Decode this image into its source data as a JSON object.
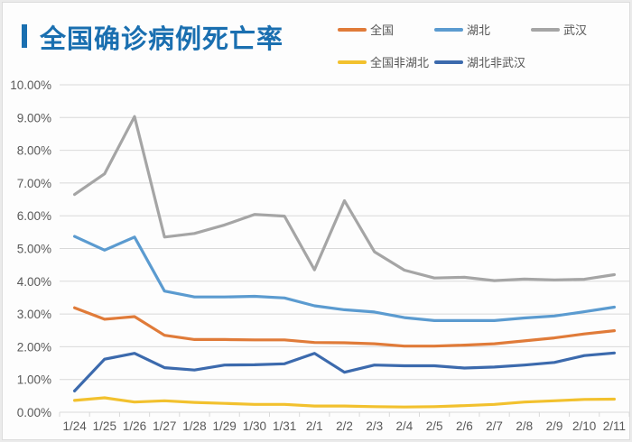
{
  "chart_data": {
    "type": "line",
    "title": "全国确诊病例死亡率",
    "xlabel": "",
    "ylabel": "",
    "x": [
      "1/24",
      "1/25",
      "1/26",
      "1/27",
      "1/28",
      "1/29",
      "1/30",
      "1/31",
      "2/1",
      "2/2",
      "2/3",
      "2/4",
      "2/5",
      "2/6",
      "2/7",
      "2/8",
      "2/9",
      "2/10",
      "2/11"
    ],
    "ylim": [
      0,
      10
    ],
    "yticks": [
      0,
      1,
      2,
      3,
      4,
      5,
      6,
      7,
      8,
      9,
      10
    ],
    "ytick_labels": [
      "0.00%",
      "1.00%",
      "2.00%",
      "3.00%",
      "4.00%",
      "5.00%",
      "6.00%",
      "7.00%",
      "8.00%",
      "9.00%",
      "10.00%"
    ],
    "y_unit": "%",
    "grid": true,
    "legend_position": "top-right",
    "series": [
      {
        "name": "全国",
        "color": "#e07b39",
        "values": [
          3.19,
          2.84,
          2.92,
          2.35,
          2.22,
          2.22,
          2.21,
          2.21,
          2.13,
          2.12,
          2.09,
          2.02,
          2.02,
          2.05,
          2.09,
          2.18,
          2.27,
          2.39,
          2.49
        ]
      },
      {
        "name": "湖北",
        "color": "#5b9bd0",
        "values": [
          5.37,
          4.95,
          5.35,
          3.7,
          3.52,
          3.52,
          3.54,
          3.49,
          3.25,
          3.13,
          3.06,
          2.89,
          2.8,
          2.8,
          2.8,
          2.88,
          2.94,
          3.07,
          3.21
        ]
      },
      {
        "name": "武汉",
        "color": "#a5a5a5",
        "values": [
          6.65,
          7.28,
          9.03,
          5.35,
          5.46,
          5.72,
          6.04,
          5.99,
          4.35,
          6.46,
          4.9,
          4.34,
          4.1,
          4.12,
          4.02,
          4.07,
          4.04,
          4.06,
          4.2
        ]
      },
      {
        "name": "全国非湖北",
        "color": "#f2c12e",
        "values": [
          0.36,
          0.44,
          0.31,
          0.35,
          0.3,
          0.27,
          0.24,
          0.24,
          0.19,
          0.19,
          0.17,
          0.16,
          0.17,
          0.2,
          0.24,
          0.31,
          0.35,
          0.39,
          0.4
        ]
      },
      {
        "name": "湖北非武汉",
        "color": "#3c6aad",
        "values": [
          0.65,
          1.62,
          1.8,
          1.36,
          1.29,
          1.44,
          1.45,
          1.48,
          1.8,
          1.22,
          1.44,
          1.42,
          1.42,
          1.35,
          1.38,
          1.44,
          1.52,
          1.73,
          1.81
        ]
      }
    ]
  },
  "colors": {
    "title": "#1a6fb0",
    "grid": "#d9d9d9",
    "axis_text": "#595959"
  }
}
